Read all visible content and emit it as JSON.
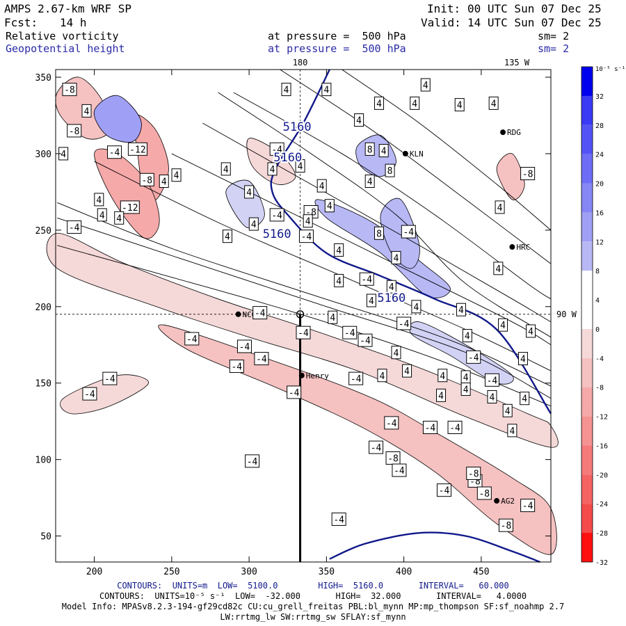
{
  "header": {
    "model": "AMPS 2.67-km WRF SP",
    "init_label": "Init:",
    "init_time": "00 UTC Sun 07 Dec 25",
    "fcst_label": "Fcst:",
    "fcst_hours": "14 h",
    "valid_label": "Valid:",
    "valid_time": "14 UTC Sun 07 Dec 25",
    "field1": "Relative vorticity",
    "field1_level": "at pressure =  500 hPa",
    "field1_sm": "sm= 2",
    "field2": "Geopotential height",
    "field2_level": "at pressure =  500 hPa",
    "field2_sm": "sm= 2"
  },
  "colors": {
    "positive": "#2e2ef0",
    "negative": "#f03030",
    "height_contour": "#10188a",
    "header_blue": "#2a2aa8"
  },
  "chart_data": {
    "type": "contour-map",
    "x_ticks": [
      200,
      250,
      300,
      350,
      400,
      450
    ],
    "y_ticks": [
      50,
      100,
      150,
      200,
      250,
      300,
      350
    ],
    "xlim": [
      175,
      495
    ],
    "ylim": [
      33,
      355
    ],
    "grid_annotations": [
      {
        "text": "180",
        "x": 333,
        "edge": "top"
      },
      {
        "text": "135 W",
        "x": 473,
        "edge": "top"
      },
      {
        "text": "90 W",
        "y": 195,
        "edge": "right"
      }
    ],
    "crosshair": {
      "x": 333,
      "y": 195
    },
    "cross_section": {
      "x": 333,
      "y_from": 33,
      "y_to": 195
    },
    "stations": [
      {
        "name": "NCO",
        "x": 293,
        "y": 195
      },
      {
        "name": "KLN",
        "x": 401,
        "y": 300
      },
      {
        "name": "RDG",
        "x": 464,
        "y": 314
      },
      {
        "name": "HRC",
        "x": 470,
        "y": 239
      },
      {
        "name": "Henry",
        "x": 334,
        "y": 155
      },
      {
        "name": "AG2",
        "x": 460,
        "y": 73
      }
    ],
    "height_contours": [
      {
        "value": 5160,
        "label": "5160",
        "points": [
          [
            352,
            355
          ],
          [
            335,
            320
          ],
          [
            317,
            290
          ],
          [
            315,
            275
          ],
          [
            325,
            260
          ],
          [
            350,
            235
          ],
          [
            385,
            220
          ],
          [
            420,
            205
          ],
          [
            460,
            185
          ],
          [
            495,
            130
          ]
        ]
      },
      {
        "value": 5160,
        "label": "5160",
        "points": [
          [
            352,
            35
          ],
          [
            375,
            45
          ],
          [
            410,
            52
          ],
          [
            440,
            50
          ],
          [
            470,
            40
          ],
          [
            488,
            33
          ]
        ]
      }
    ],
    "height_labels": [
      {
        "text": "5160",
        "x": 331,
        "y": 315
      },
      {
        "text": "5160",
        "x": 325,
        "y": 295
      },
      {
        "text": "5160",
        "x": 318,
        "y": 245
      },
      {
        "text": "5160",
        "x": 392,
        "y": 203
      }
    ],
    "vorticity_colorbar": {
      "unit": "10⁻⁵ s⁻¹",
      "levels": [
        32,
        28,
        24,
        20,
        16,
        12,
        8,
        4,
        0,
        -4,
        -8,
        -12,
        -16,
        -20,
        -24,
        -28,
        -32
      ]
    },
    "vorticity_negative_regions": [
      {
        "points": [
          [
            176,
            340
          ],
          [
            190,
            350
          ],
          [
            205,
            335
          ],
          [
            210,
            315
          ],
          [
            195,
            310
          ],
          [
            178,
            325
          ]
        ],
        "level": -8
      },
      {
        "points": [
          [
            226,
            325
          ],
          [
            240,
            315
          ],
          [
            248,
            290
          ],
          [
            240,
            270
          ],
          [
            232,
            275
          ],
          [
            228,
            300
          ]
        ],
        "level": -12
      },
      {
        "points": [
          [
            200,
            300
          ],
          [
            215,
            300
          ],
          [
            235,
            280
          ],
          [
            242,
            255
          ],
          [
            232,
            245
          ],
          [
            212,
            270
          ]
        ],
        "level": -12
      },
      {
        "points": [
          [
            176,
            248
          ],
          [
            220,
            228
          ],
          [
            280,
            205
          ],
          [
            340,
            185
          ],
          [
            410,
            160
          ],
          [
            480,
            130
          ],
          [
            495,
            122
          ],
          [
            495,
            108
          ],
          [
            440,
            128
          ],
          [
            370,
            158
          ],
          [
            300,
            180
          ],
          [
            240,
            200
          ],
          [
            176,
            225
          ]
        ],
        "level": -4
      },
      {
        "points": [
          [
            245,
            188
          ],
          [
            320,
            163
          ],
          [
            380,
            140
          ],
          [
            420,
            118
          ],
          [
            470,
            88
          ],
          [
            495,
            68
          ],
          [
            495,
            38
          ],
          [
            460,
            58
          ],
          [
            420,
            92
          ],
          [
            375,
            120
          ],
          [
            320,
            146
          ],
          [
            260,
            172
          ]
        ],
        "level": -8
      },
      {
        "points": [
          [
            180,
            140
          ],
          [
            215,
            155
          ],
          [
            235,
            150
          ],
          [
            210,
            135
          ],
          [
            185,
            130
          ]
        ],
        "level": -4
      },
      {
        "points": [
          [
            300,
            310
          ],
          [
            320,
            300
          ],
          [
            330,
            285
          ],
          [
            318,
            280
          ],
          [
            302,
            292
          ]
        ],
        "level": -4
      },
      {
        "points": [
          [
            460,
            290
          ],
          [
            470,
            300
          ],
          [
            478,
            280
          ],
          [
            470,
            270
          ]
        ],
        "level": -8
      }
    ],
    "vorticity_positive_regions": [
      {
        "points": [
          [
            200,
            328
          ],
          [
            215,
            338
          ],
          [
            230,
            322
          ],
          [
            225,
            308
          ],
          [
            208,
            312
          ]
        ],
        "level": 12
      },
      {
        "points": [
          [
            370,
            305
          ],
          [
            385,
            312
          ],
          [
            395,
            295
          ],
          [
            385,
            285
          ],
          [
            372,
            292
          ]
        ],
        "level": 8
      },
      {
        "points": [
          [
            345,
            270
          ],
          [
            380,
            255
          ],
          [
            410,
            230
          ],
          [
            430,
            212
          ],
          [
            415,
            207
          ],
          [
            385,
            235
          ],
          [
            350,
            258
          ]
        ],
        "level": 8
      },
      {
        "points": [
          [
            385,
            260
          ],
          [
            398,
            270
          ],
          [
            410,
            240
          ],
          [
            405,
            225
          ],
          [
            392,
            235
          ]
        ],
        "level": 8
      },
      {
        "points": [
          [
            410,
            190
          ],
          [
            440,
            175
          ],
          [
            470,
            155
          ],
          [
            460,
            150
          ],
          [
            430,
            168
          ],
          [
            405,
            182
          ]
        ],
        "level": 4
      },
      {
        "points": [
          [
            285,
            275
          ],
          [
            300,
            282
          ],
          [
            310,
            260
          ],
          [
            298,
            252
          ]
        ],
        "level": 4
      }
    ],
    "vorticity_lines": [
      [
        [
          176,
          268
        ],
        [
          250,
          238
        ],
        [
          340,
          208
        ],
        [
          430,
          178
        ],
        [
          495,
          148
        ]
      ],
      [
        [
          176,
          258
        ],
        [
          260,
          230
        ],
        [
          350,
          200
        ],
        [
          440,
          170
        ],
        [
          495,
          140
        ]
      ],
      [
        [
          200,
          295
        ],
        [
          280,
          255
        ],
        [
          360,
          220
        ],
        [
          440,
          185
        ],
        [
          495,
          158
        ]
      ],
      [
        [
          250,
          300
        ],
        [
          320,
          265
        ],
        [
          400,
          225
        ],
        [
          470,
          190
        ],
        [
          495,
          175
        ]
      ],
      [
        [
          270,
          320
        ],
        [
          340,
          280
        ],
        [
          410,
          240
        ],
        [
          470,
          205
        ],
        [
          495,
          190
        ]
      ],
      [
        [
          290,
          340
        ],
        [
          360,
          300
        ],
        [
          420,
          260
        ],
        [
          480,
          215
        ],
        [
          495,
          205
        ]
      ],
      [
        [
          320,
          355
        ],
        [
          380,
          315
        ],
        [
          440,
          270
        ],
        [
          495,
          228
        ]
      ],
      [
        [
          360,
          355
        ],
        [
          410,
          320
        ],
        [
          460,
          280
        ],
        [
          495,
          250
        ]
      ],
      [
        [
          176,
          240
        ],
        [
          240,
          222
        ],
        [
          330,
          196
        ],
        [
          420,
          166
        ],
        [
          495,
          135
        ]
      ],
      [
        [
          280,
          340
        ],
        [
          340,
          300
        ],
        [
          395,
          260
        ],
        [
          440,
          215
        ],
        [
          495,
          180
        ]
      ]
    ],
    "vorticity_labels": [
      {
        "text": "-8",
        "x": 184,
        "y": 342
      },
      {
        "text": "4",
        "x": 195,
        "y": 328
      },
      {
        "text": "-8",
        "x": 187,
        "y": 315
      },
      {
        "text": "-4",
        "x": 213,
        "y": 301
      },
      {
        "text": "-12",
        "x": 228,
        "y": 303
      },
      {
        "text": "-8",
        "x": 234,
        "y": 283
      },
      {
        "text": "4",
        "x": 253,
        "y": 286
      },
      {
        "text": "4",
        "x": 180,
        "y": 300
      },
      {
        "text": "4",
        "x": 203,
        "y": 270
      },
      {
        "text": "-12",
        "x": 223,
        "y": 265
      },
      {
        "text": "4",
        "x": 205,
        "y": 260
      },
      {
        "text": "4",
        "x": 216,
        "y": 258
      },
      {
        "text": "-4",
        "x": 187,
        "y": 252
      },
      {
        "text": "4",
        "x": 245,
        "y": 282
      },
      {
        "text": "4",
        "x": 315,
        "y": 290
      },
      {
        "text": "4",
        "x": 285,
        "y": 290
      },
      {
        "text": "4",
        "x": 300,
        "y": 275
      },
      {
        "text": "-4",
        "x": 318,
        "y": 303
      },
      {
        "text": "4",
        "x": 324,
        "y": 342
      },
      {
        "text": "4",
        "x": 333,
        "y": 292
      },
      {
        "text": "4",
        "x": 350,
        "y": 342
      },
      {
        "text": "4",
        "x": 371,
        "y": 322
      },
      {
        "text": "4",
        "x": 384,
        "y": 333
      },
      {
        "text": "4",
        "x": 407,
        "y": 333
      },
      {
        "text": "4",
        "x": 436,
        "y": 332
      },
      {
        "text": "4",
        "x": 458,
        "y": 333
      },
      {
        "text": "4",
        "x": 414,
        "y": 345
      },
      {
        "text": "8",
        "x": 378,
        "y": 303
      },
      {
        "text": "4",
        "x": 387,
        "y": 302
      },
      {
        "text": "8",
        "x": 391,
        "y": 289
      },
      {
        "text": "4",
        "x": 347,
        "y": 279
      },
      {
        "text": "4",
        "x": 378,
        "y": 282
      },
      {
        "text": "4",
        "x": 352,
        "y": 266
      },
      {
        "text": "-8",
        "x": 340,
        "y": 262
      },
      {
        "text": "-4",
        "x": 318,
        "y": 260
      },
      {
        "text": "4",
        "x": 286,
        "y": 246
      },
      {
        "text": "4",
        "x": 303,
        "y": 254
      },
      {
        "text": "4",
        "x": 338,
        "y": 256
      },
      {
        "text": "-4",
        "x": 337,
        "y": 246
      },
      {
        "text": "4",
        "x": 358,
        "y": 237
      },
      {
        "text": "8",
        "x": 384,
        "y": 248
      },
      {
        "text": "-4",
        "x": 403,
        "y": 249
      },
      {
        "text": "4",
        "x": 395,
        "y": 232
      },
      {
        "text": "4",
        "x": 358,
        "y": 217
      },
      {
        "text": "-4",
        "x": 376,
        "y": 218
      },
      {
        "text": "4",
        "x": 392,
        "y": 213
      },
      {
        "text": "4",
        "x": 379,
        "y": 204
      },
      {
        "text": "4",
        "x": 354,
        "y": 193
      },
      {
        "text": "-4",
        "x": 365,
        "y": 183
      },
      {
        "text": "4",
        "x": 408,
        "y": 200
      },
      {
        "text": "4",
        "x": 462,
        "y": 265
      },
      {
        "text": "4",
        "x": 461,
        "y": 225
      },
      {
        "text": "4",
        "x": 464,
        "y": 188
      },
      {
        "text": "-8",
        "x": 480,
        "y": 287
      },
      {
        "text": "4",
        "x": 437,
        "y": 198
      },
      {
        "text": "-4",
        "x": 297,
        "y": 174
      },
      {
        "text": "-4",
        "x": 292,
        "y": 161
      },
      {
        "text": "-4",
        "x": 263,
        "y": 179
      },
      {
        "text": "-4",
        "x": 307,
        "y": 196
      },
      {
        "text": "-4",
        "x": 375,
        "y": 178
      },
      {
        "text": "4",
        "x": 441,
        "y": 181
      },
      {
        "text": "4",
        "x": 477,
        "y": 166
      },
      {
        "text": "4",
        "x": 482,
        "y": 184
      },
      {
        "text": "4",
        "x": 395,
        "y": 170
      },
      {
        "text": "4",
        "x": 425,
        "y": 155
      },
      {
        "text": "-4",
        "x": 369,
        "y": 153
      },
      {
        "text": "4",
        "x": 440,
        "y": 154
      },
      {
        "text": "-4",
        "x": 445,
        "y": 167
      },
      {
        "text": "-4",
        "x": 457,
        "y": 152
      },
      {
        "text": "4",
        "x": 457,
        "y": 141
      },
      {
        "text": "4",
        "x": 467,
        "y": 132
      },
      {
        "text": "4",
        "x": 478,
        "y": 140
      },
      {
        "text": "4",
        "x": 470,
        "y": 119
      },
      {
        "text": "-4",
        "x": 392,
        "y": 124
      },
      {
        "text": "-4",
        "x": 417,
        "y": 121
      },
      {
        "text": "-4",
        "x": 433,
        "y": 121
      },
      {
        "text": "-4",
        "x": 382,
        "y": 108
      },
      {
        "text": "-8",
        "x": 393,
        "y": 101
      },
      {
        "text": "-4",
        "x": 397,
        "y": 93
      },
      {
        "text": "-8",
        "x": 446,
        "y": 86
      },
      {
        "text": "-8",
        "x": 445,
        "y": 91
      },
      {
        "text": "-4",
        "x": 426,
        "y": 80
      },
      {
        "text": "-8",
        "x": 452,
        "y": 78
      },
      {
        "text": "-4",
        "x": 480,
        "y": 70
      },
      {
        "text": "-4",
        "x": 302,
        "y": 99
      },
      {
        "text": "-4",
        "x": 358,
        "y": 61
      },
      {
        "text": "-8",
        "x": 466,
        "y": 57
      },
      {
        "text": "-4",
        "x": 210,
        "y": 153
      },
      {
        "text": "-4",
        "x": 197,
        "y": 143
      },
      {
        "text": "-4",
        "x": 329,
        "y": 144
      },
      {
        "text": "-4",
        "x": 308,
        "y": 166
      },
      {
        "text": "4",
        "x": 386,
        "y": 155
      },
      {
        "text": "4",
        "x": 402,
        "y": 158
      },
      {
        "text": "4",
        "x": 440,
        "y": 146
      },
      {
        "text": "4",
        "x": 424,
        "y": 142
      },
      {
        "text": "-4",
        "x": 335,
        "y": 183
      },
      {
        "text": "-4",
        "x": 400,
        "y": 189
      }
    ]
  },
  "footer": {
    "line1": "CONTOURS:  UNITS=m  LOW=  5100.0        HIGH=  5160.0       INTERVAL=   60.000",
    "line2": "CONTOURS:  UNITS=10⁻⁵ s⁻¹  LOW=  -32.000       HIGH=  32.000       INTERVAL=   4.0000",
    "line3": "Model Info: MPASv8.2.3-194-gf29cd82c CU:cu_grell_freitas PBL:bl_mynn MP:mp_thompson SF:sf_noahmp 2.7",
    "line4": "LW:rrtmg_lw SW:rrtmg_sw SFLAY:sf_mynn"
  }
}
